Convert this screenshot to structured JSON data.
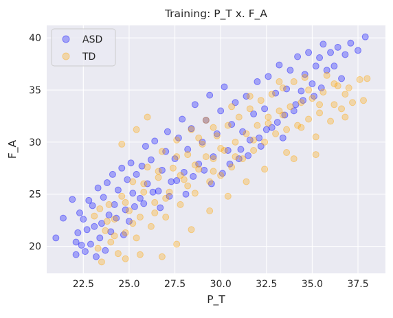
{
  "chart_data": {
    "type": "scatter",
    "title": "Training: P_T x. F_A",
    "xlabel": "P_T",
    "ylabel": "F_A",
    "xlim": [
      20.5,
      39.0
    ],
    "ylim": [
      17.4,
      41.2
    ],
    "xticks": [
      22.5,
      25.0,
      27.5,
      30.0,
      32.5,
      35.0,
      37.5
    ],
    "xtick_labels": [
      "22.5",
      "25.0",
      "27.5",
      "30.0",
      "32.5",
      "35.0",
      "37.5"
    ],
    "yticks": [
      20,
      25,
      30,
      35,
      40
    ],
    "ytick_labels": [
      "20",
      "25",
      "30",
      "35",
      "40"
    ],
    "grid": true,
    "legend_position": "top-left",
    "background": "#eaeaf2",
    "series": [
      {
        "name": "ASD",
        "color": "#0000ff",
        "alpha": 0.3,
        "points": [
          [
            21.0,
            20.8
          ],
          [
            21.4,
            22.7
          ],
          [
            21.9,
            24.5
          ],
          [
            22.1,
            19.2
          ],
          [
            22.1,
            20.4
          ],
          [
            22.2,
            21.3
          ],
          [
            22.3,
            23.2
          ],
          [
            22.4,
            20.1
          ],
          [
            22.5,
            22.6
          ],
          [
            22.6,
            19.5
          ],
          [
            22.7,
            21.6
          ],
          [
            22.8,
            24.4
          ],
          [
            22.9,
            20.2
          ],
          [
            23.0,
            23.9
          ],
          [
            23.1,
            21.9
          ],
          [
            23.3,
            25.6
          ],
          [
            23.5,
            22.2
          ],
          [
            23.6,
            24.7
          ],
          [
            23.8,
            26.1
          ],
          [
            23.9,
            23.0
          ],
          [
            24.1,
            26.9
          ],
          [
            24.2,
            24.0
          ],
          [
            24.4,
            25.4
          ],
          [
            24.6,
            27.5
          ],
          [
            24.8,
            23.5
          ],
          [
            24.9,
            26.4
          ],
          [
            25.1,
            28.0
          ],
          [
            25.2,
            25.1
          ],
          [
            25.4,
            26.9
          ],
          [
            25.6,
            24.6
          ],
          [
            25.7,
            27.7
          ],
          [
            25.9,
            29.6
          ],
          [
            26.0,
            26.0
          ],
          [
            26.2,
            28.3
          ],
          [
            26.4,
            30.1
          ],
          [
            26.6,
            25.3
          ],
          [
            26.8,
            27.3
          ],
          [
            27.0,
            29.1
          ],
          [
            27.1,
            31.0
          ],
          [
            27.3,
            26.2
          ],
          [
            27.5,
            28.4
          ],
          [
            27.7,
            30.4
          ],
          [
            27.9,
            32.2
          ],
          [
            28.0,
            27.1
          ],
          [
            28.2,
            29.3
          ],
          [
            28.4,
            31.3
          ],
          [
            28.6,
            33.6
          ],
          [
            28.8,
            27.9
          ],
          [
            29.0,
            30.0
          ],
          [
            29.2,
            32.1
          ],
          [
            29.4,
            34.5
          ],
          [
            29.6,
            28.6
          ],
          [
            29.8,
            30.8
          ],
          [
            30.0,
            33.0
          ],
          [
            30.2,
            35.3
          ],
          [
            30.4,
            29.2
          ],
          [
            30.6,
            31.7
          ],
          [
            30.8,
            33.8
          ],
          [
            31.0,
            28.4
          ],
          [
            31.2,
            31.0
          ],
          [
            31.4,
            34.4
          ],
          [
            31.6,
            30.2
          ],
          [
            31.8,
            32.7
          ],
          [
            32.0,
            35.8
          ],
          [
            32.2,
            29.6
          ],
          [
            32.4,
            33.2
          ],
          [
            32.6,
            36.3
          ],
          [
            32.8,
            31.4
          ],
          [
            33.0,
            34.7
          ],
          [
            33.2,
            37.4
          ],
          [
            33.4,
            30.4
          ],
          [
            33.6,
            35.1
          ],
          [
            33.8,
            36.9
          ],
          [
            34.0,
            33.0
          ],
          [
            34.2,
            38.2
          ],
          [
            34.4,
            34.9
          ],
          [
            34.6,
            36.5
          ],
          [
            34.8,
            38.6
          ],
          [
            35.0,
            35.6
          ],
          [
            35.2,
            37.3
          ],
          [
            35.4,
            38.1
          ],
          [
            35.6,
            39.4
          ],
          [
            35.8,
            36.9
          ],
          [
            36.0,
            38.6
          ],
          [
            36.2,
            37.3
          ],
          [
            36.4,
            39.1
          ],
          [
            36.6,
            36.1
          ],
          [
            36.8,
            38.4
          ],
          [
            37.1,
            39.5
          ],
          [
            37.5,
            38.8
          ],
          [
            37.9,
            40.1
          ],
          [
            23.2,
            19.0
          ],
          [
            23.4,
            20.8
          ],
          [
            23.7,
            19.6
          ],
          [
            24.0,
            21.4
          ],
          [
            24.3,
            22.7
          ],
          [
            24.7,
            21.1
          ],
          [
            25.0,
            22.4
          ],
          [
            25.3,
            23.8
          ],
          [
            25.8,
            24.1
          ],
          [
            26.3,
            25.2
          ],
          [
            26.7,
            23.7
          ],
          [
            27.2,
            24.8
          ],
          [
            27.6,
            26.3
          ],
          [
            28.1,
            25.0
          ],
          [
            28.5,
            26.7
          ],
          [
            29.1,
            27.3
          ],
          [
            29.5,
            26.0
          ],
          [
            30.1,
            27.0
          ],
          [
            30.5,
            27.9
          ],
          [
            31.1,
            29.3
          ],
          [
            31.5,
            28.7
          ],
          [
            32.1,
            30.4
          ],
          [
            32.5,
            31.2
          ],
          [
            33.1,
            31.9
          ],
          [
            33.5,
            32.6
          ],
          [
            34.1,
            33.6
          ],
          [
            34.5,
            34.0
          ],
          [
            35.1,
            34.4
          ],
          [
            35.5,
            35.2
          ]
        ]
      },
      {
        "name": "TD",
        "color": "#ffa500",
        "alpha": 0.3,
        "points": [
          [
            23.1,
            22.9
          ],
          [
            23.3,
            19.8
          ],
          [
            23.5,
            18.5
          ],
          [
            23.7,
            21.5
          ],
          [
            23.9,
            24.0
          ],
          [
            24.0,
            20.4
          ],
          [
            24.2,
            22.6
          ],
          [
            24.4,
            19.3
          ],
          [
            24.6,
            24.8
          ],
          [
            24.8,
            21.3
          ],
          [
            25.0,
            23.4
          ],
          [
            25.2,
            26.2
          ],
          [
            25.4,
            20.8
          ],
          [
            25.6,
            22.8
          ],
          [
            25.8,
            25.2
          ],
          [
            26.0,
            27.6
          ],
          [
            26.2,
            21.9
          ],
          [
            26.4,
            24.2
          ],
          [
            26.6,
            26.6
          ],
          [
            26.8,
            29.1
          ],
          [
            27.0,
            22.8
          ],
          [
            27.2,
            25.2
          ],
          [
            27.4,
            27.5
          ],
          [
            27.6,
            30.2
          ],
          [
            27.8,
            24.0
          ],
          [
            28.0,
            26.4
          ],
          [
            28.2,
            28.8
          ],
          [
            28.4,
            31.2
          ],
          [
            28.6,
            25.1
          ],
          [
            28.8,
            27.4
          ],
          [
            29.0,
            29.8
          ],
          [
            29.2,
            32.1
          ],
          [
            29.4,
            26.2
          ],
          [
            29.6,
            28.4
          ],
          [
            29.8,
            30.6
          ],
          [
            30.0,
            26.8
          ],
          [
            30.2,
            29.2
          ],
          [
            30.4,
            31.6
          ],
          [
            30.6,
            27.6
          ],
          [
            30.8,
            30.0
          ],
          [
            31.0,
            32.4
          ],
          [
            31.2,
            28.4
          ],
          [
            31.4,
            30.8
          ],
          [
            31.6,
            33.2
          ],
          [
            31.8,
            29.2
          ],
          [
            32.0,
            31.6
          ],
          [
            32.2,
            34.0
          ],
          [
            32.4,
            30.0
          ],
          [
            32.6,
            32.4
          ],
          [
            32.8,
            34.6
          ],
          [
            33.0,
            30.8
          ],
          [
            33.2,
            33.0
          ],
          [
            33.4,
            35.2
          ],
          [
            33.6,
            31.2
          ],
          [
            33.8,
            33.4
          ],
          [
            34.0,
            35.8
          ],
          [
            34.2,
            31.6
          ],
          [
            34.4,
            33.8
          ],
          [
            34.6,
            36.2
          ],
          [
            34.8,
            32.2
          ],
          [
            35.0,
            34.2
          ],
          [
            35.2,
            30.5
          ],
          [
            35.4,
            32.8
          ],
          [
            35.6,
            34.8
          ],
          [
            35.8,
            36.4
          ],
          [
            36.0,
            32.0
          ],
          [
            36.2,
            33.6
          ],
          [
            36.4,
            35.4
          ],
          [
            36.6,
            33.2
          ],
          [
            36.8,
            34.6
          ],
          [
            37.0,
            35.2
          ],
          [
            37.2,
            33.8
          ],
          [
            37.6,
            36.0
          ],
          [
            37.8,
            34.0
          ],
          [
            38.0,
            36.1
          ],
          [
            35.2,
            28.8
          ],
          [
            34.0,
            28.4
          ],
          [
            33.6,
            29.0
          ],
          [
            26.0,
            32.4
          ],
          [
            25.4,
            31.2
          ],
          [
            24.6,
            29.8
          ],
          [
            26.8,
            19.0
          ],
          [
            25.6,
            19.2
          ],
          [
            24.8,
            18.8
          ],
          [
            27.6,
            20.2
          ],
          [
            28.4,
            21.6
          ],
          [
            29.4,
            23.4
          ],
          [
            30.4,
            24.8
          ],
          [
            31.4,
            26.2
          ],
          [
            32.4,
            27.4
          ],
          [
            27.0,
            24.6
          ],
          [
            27.8,
            26.8
          ],
          [
            28.6,
            27.8
          ],
          [
            29.2,
            28.6
          ],
          [
            30.0,
            29.4
          ],
          [
            26.4,
            23.2
          ],
          [
            25.2,
            22.2
          ],
          [
            24.2,
            21.0
          ],
          [
            28.2,
            25.8
          ],
          [
            29.6,
            27.2
          ],
          [
            30.8,
            28.6
          ],
          [
            31.8,
            30.2
          ],
          [
            32.6,
            31.8
          ],
          [
            33.4,
            32.6
          ],
          [
            34.4,
            31.4
          ],
          [
            35.4,
            33.6
          ],
          [
            36.2,
            35.6
          ],
          [
            36.8,
            32.4
          ],
          [
            34.8,
            35.0
          ],
          [
            33.2,
            35.8
          ],
          [
            31.6,
            34.4
          ],
          [
            30.6,
            33.4
          ],
          [
            29.6,
            31.4
          ],
          [
            28.8,
            30.4
          ],
          [
            27.6,
            28.6
          ],
          [
            26.6,
            27.2
          ],
          [
            25.8,
            26.0
          ],
          [
            24.8,
            24.2
          ],
          [
            23.8,
            22.4
          ],
          [
            23.4,
            23.6
          ]
        ]
      }
    ]
  }
}
